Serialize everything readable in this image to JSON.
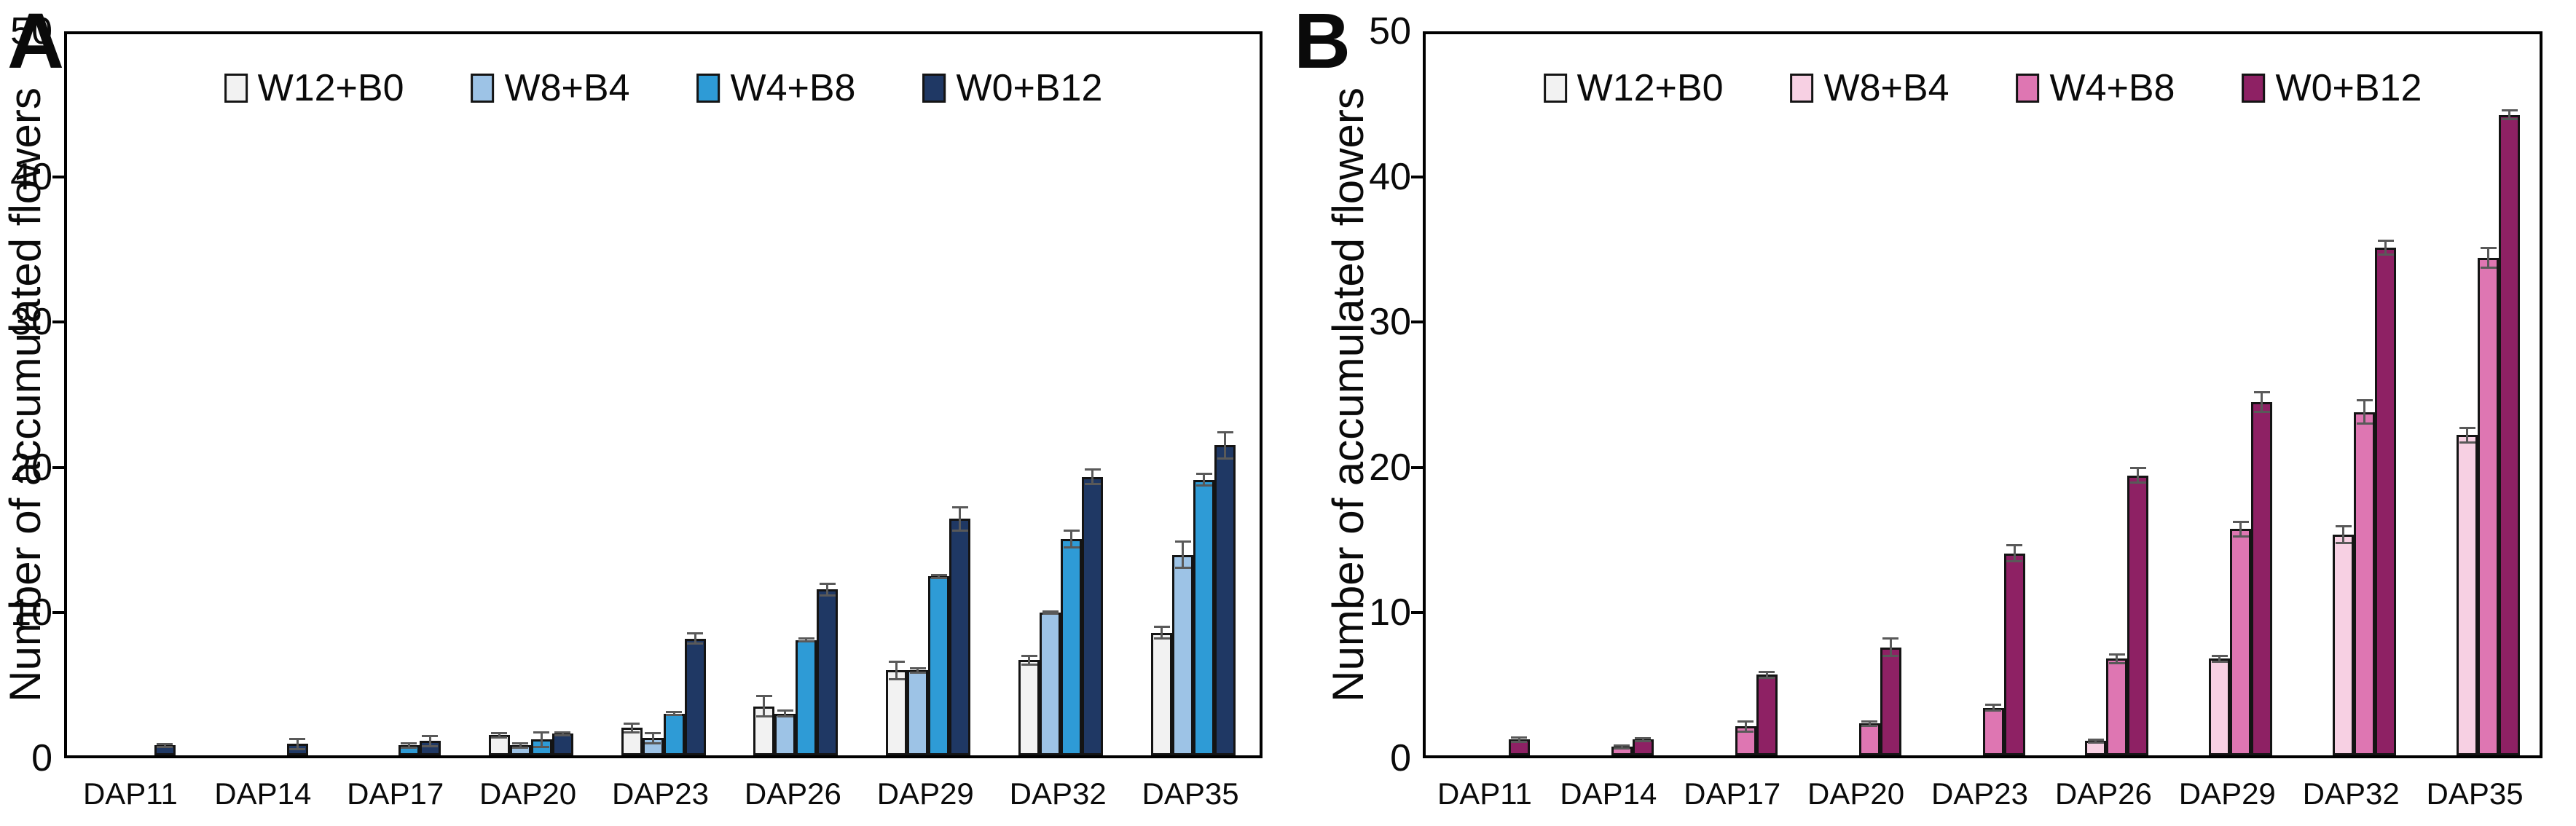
{
  "figure": {
    "background": "#FFFFFF",
    "axis_color": "#000000",
    "error_bar_color": "#595959",
    "bar_outline_color": "#141414"
  },
  "chart_data": [
    {
      "type": "bar",
      "panel_label": "A",
      "title": "",
      "ylabel": "Number of accumulated flowers",
      "xlabel": "",
      "ylim": [
        0,
        50
      ],
      "yticks": [
        0,
        10,
        20,
        30,
        40,
        50
      ],
      "grid": false,
      "legend_position": "top-inside",
      "categories": [
        "DAP11",
        "DAP14",
        "DAP17",
        "DAP20",
        "DAP23",
        "DAP26",
        "DAP29",
        "DAP32",
        "DAP35"
      ],
      "series": [
        {
          "name": "W12+B0",
          "color": "#F2F2F2",
          "values": [
            0,
            0,
            0,
            1.4,
            1.9,
            3.4,
            5.9,
            6.6,
            8.5
          ],
          "errors": [
            0,
            0,
            0,
            0.15,
            0.3,
            0.7,
            0.6,
            0.3,
            0.4
          ]
        },
        {
          "name": "W8+B4",
          "color": "#9DC3E6",
          "values": [
            0,
            0,
            0,
            0.7,
            1.2,
            2.9,
            5.9,
            9.9,
            13.9
          ],
          "errors": [
            0,
            0,
            0,
            0.15,
            0.35,
            0.2,
            0.15,
            0.1,
            0.9
          ]
        },
        {
          "name": "W4+B8",
          "color": "#2E9BD6",
          "values": [
            0,
            0,
            0.7,
            1.1,
            2.9,
            8.0,
            12.4,
            15.0,
            19.1
          ],
          "errors": [
            0,
            0,
            0.15,
            0.5,
            0.1,
            0.1,
            0.1,
            0.6,
            0.4
          ]
        },
        {
          "name": "W0+B12",
          "color": "#1F3864",
          "values": [
            0.7,
            0.8,
            1.0,
            1.5,
            8.1,
            11.5,
            16.4,
            19.3,
            21.5
          ],
          "errors": [
            0.1,
            0.35,
            0.35,
            0.1,
            0.35,
            0.4,
            0.8,
            0.5,
            0.9
          ]
        }
      ]
    },
    {
      "type": "bar",
      "panel_label": "B",
      "title": "",
      "ylabel": "Number of accumulated flowers",
      "xlabel": "",
      "ylim": [
        0,
        50
      ],
      "yticks": [
        0,
        10,
        20,
        30,
        40,
        50
      ],
      "grid": false,
      "legend_position": "top-inside",
      "categories": [
        "DAP11",
        "DAP14",
        "DAP17",
        "DAP20",
        "DAP23",
        "DAP26",
        "DAP29",
        "DAP32",
        "DAP35"
      ],
      "series": [
        {
          "name": "W12+B0",
          "color": "#F2F2F2",
          "values": [
            0,
            0,
            0,
            0,
            0,
            0,
            0,
            0,
            0
          ],
          "errors": [
            0,
            0,
            0,
            0,
            0,
            0,
            0,
            0,
            0
          ]
        },
        {
          "name": "W8+B4",
          "color": "#F7D0E3",
          "values": [
            0,
            0,
            0,
            0,
            0,
            1.0,
            6.7,
            15.3,
            22.2
          ],
          "errors": [
            0,
            0,
            0,
            0,
            0,
            0.1,
            0.2,
            0.6,
            0.5
          ]
        },
        {
          "name": "W4+B8",
          "color": "#DE76B2",
          "values": [
            0,
            0.6,
            2.0,
            2.2,
            3.3,
            6.7,
            15.7,
            23.8,
            34.5
          ],
          "errors": [
            0,
            0.1,
            0.35,
            0.15,
            0.2,
            0.3,
            0.5,
            0.8,
            0.7
          ]
        },
        {
          "name": "W0+B12",
          "color": "#8E2164",
          "values": [
            1.1,
            1.1,
            5.6,
            7.5,
            14.0,
            19.4,
            24.5,
            35.2,
            44.4
          ],
          "errors": [
            0.15,
            0.1,
            0.2,
            0.6,
            0.55,
            0.5,
            0.7,
            0.5,
            0.3
          ]
        }
      ]
    }
  ]
}
